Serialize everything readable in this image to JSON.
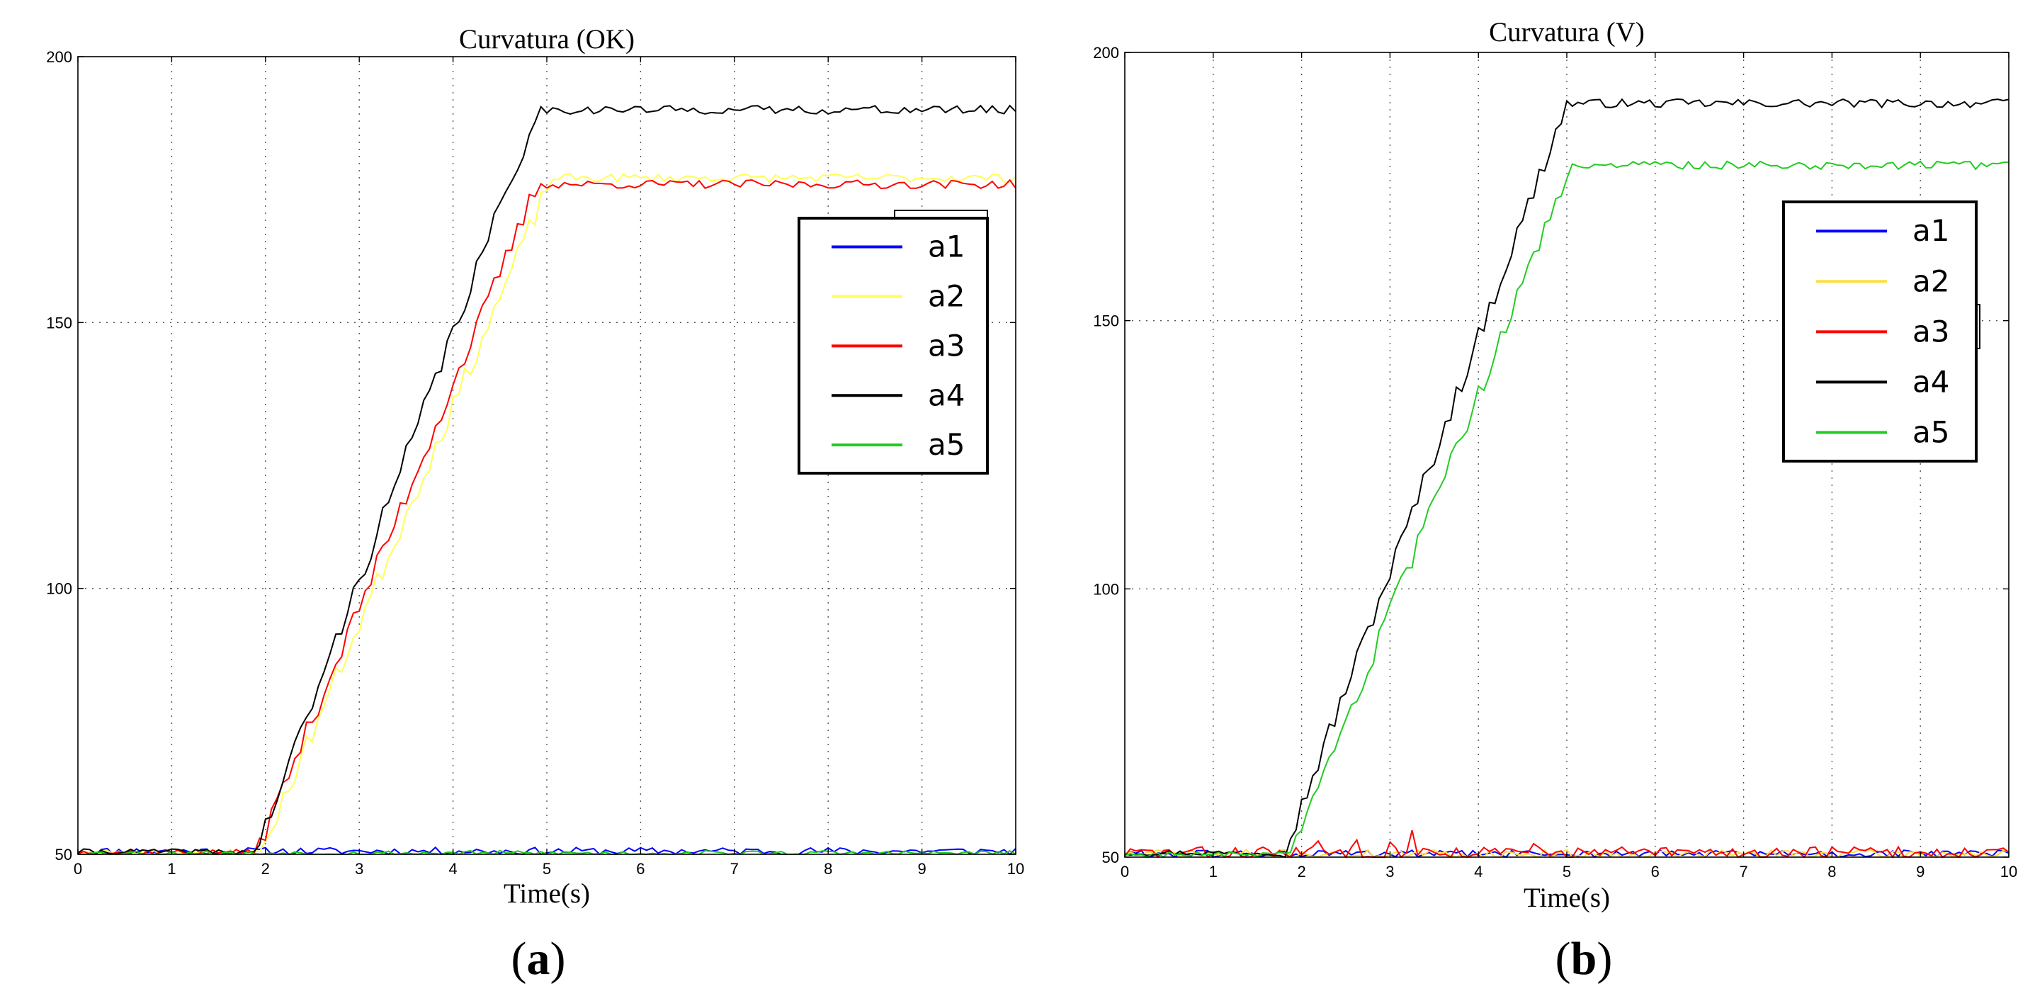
{
  "chart_data": [
    {
      "type": "line",
      "title": "Curvatura (OK)",
      "xlabel": "Time(s)",
      "ylabel": "",
      "xlim": [
        0,
        10
      ],
      "ylim": [
        50,
        200
      ],
      "xticks": [
        "0",
        "1",
        "2",
        "3",
        "4",
        "5",
        "6",
        "7",
        "8",
        "9",
        "10"
      ],
      "yticks": [
        "50",
        "100",
        "150",
        "200"
      ],
      "grid": true,
      "legend": "right-upper",
      "panel_label": "a",
      "series": [
        {
          "name": "a1",
          "color": "#0000ff",
          "base": 50.6,
          "noise": 0.7,
          "seed": 11
        },
        {
          "name": "a2",
          "color": "#ffff55",
          "base": 50.4,
          "noise": 0.5,
          "seed": 23,
          "ramp": {
            "start": 1.9,
            "end": 5.0,
            "plateau": 177.2,
            "lag": 0.05
          }
        },
        {
          "name": "a3",
          "color": "#ff0000",
          "base": 50.4,
          "noise": 0.5,
          "seed": 37,
          "ramp": {
            "start": 1.9,
            "end": 4.9,
            "plateau": 176.0,
            "lag": 0.0
          }
        },
        {
          "name": "a4",
          "color": "#000000",
          "base": 50.5,
          "noise": 0.5,
          "seed": 41,
          "ramp": {
            "start": 1.9,
            "end": 4.9,
            "plateau": 190.0,
            "lag": 0.0
          }
        },
        {
          "name": "a5",
          "color": "#22cc22",
          "base": 50.2,
          "noise": 0.5,
          "seed": 53
        }
      ]
    },
    {
      "type": "line",
      "title": "Curvatura (V)",
      "xlabel": "Time(s)",
      "ylabel": "",
      "xlim": [
        0,
        10
      ],
      "ylim": [
        50,
        200
      ],
      "xticks": [
        "0",
        "1",
        "2",
        "3",
        "4",
        "5",
        "6",
        "7",
        "8",
        "9",
        "10"
      ],
      "yticks": [
        "50",
        "100",
        "150",
        "200"
      ],
      "grid": true,
      "legend": "right-upper",
      "panel_label": "b",
      "series": [
        {
          "name": "a1",
          "color": "#0000ff",
          "base": 50.6,
          "noise": 0.7,
          "seed": 61
        },
        {
          "name": "a2",
          "color": "#ffdd44",
          "base": 50.6,
          "noise": 0.8,
          "seed": 71
        },
        {
          "name": "a3",
          "color": "#ff0000",
          "base": 50.8,
          "noise": 1.2,
          "seed": 83,
          "spikes": [
            [
              2.2,
              53.0
            ],
            [
              2.6,
              53.2
            ],
            [
              3.0,
              52.8
            ],
            [
              3.25,
              55.0
            ],
            [
              4.6,
              52.5
            ]
          ]
        },
        {
          "name": "a4",
          "color": "#000000",
          "base": 50.8,
          "noise": 0.5,
          "seed": 97,
          "ramp": {
            "start": 1.8,
            "end": 5.0,
            "plateau": 190.5,
            "lag": 0.0
          }
        },
        {
          "name": "a5",
          "color": "#22cc22",
          "base": 50.5,
          "noise": 0.5,
          "seed": 103,
          "ramp": {
            "start": 1.85,
            "end": 5.0,
            "plateau": 179.0,
            "lag": 0.05
          }
        }
      ]
    }
  ]
}
